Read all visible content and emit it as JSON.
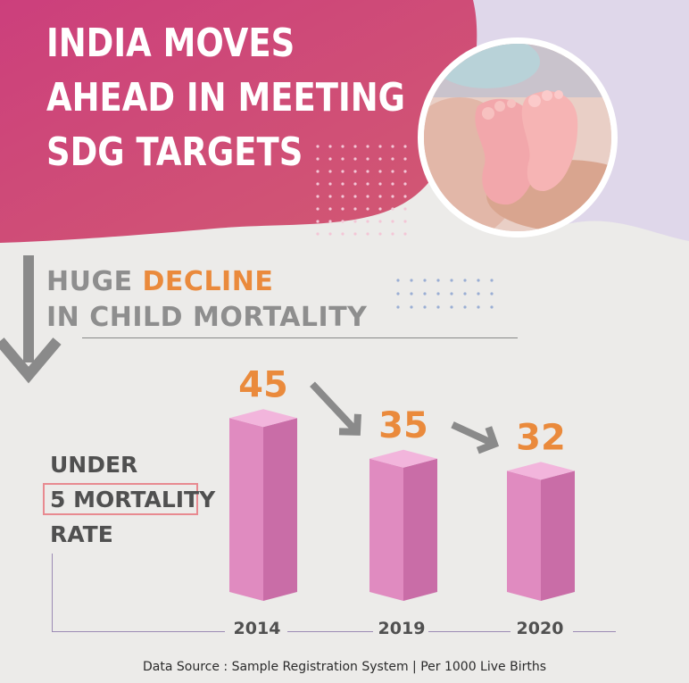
{
  "header": {
    "title_lines": [
      "INDIA MOVES",
      "AHEAD IN MEETING",
      "SDG TARGETS"
    ]
  },
  "subheading": {
    "part1": "HUGE ",
    "highlight": "DECLINE",
    "line2": "IN CHILD MORTALITY"
  },
  "ylabel_lines": [
    "UNDER",
    "5 MORTALITY",
    "RATE"
  ],
  "source_text": "Data Source : Sample Registration System | Per 1000 Live Births",
  "colors": {
    "banner": "#c8447d",
    "bar_front": "#e08bc0",
    "bar_side": "#c96da7",
    "bar_top": "#f2b5dc",
    "value_text": "#ea8a3c",
    "highlight": "#ea8a3c",
    "arrow": "#8a8a8a"
  },
  "chart_data": {
    "type": "bar",
    "categories": [
      "2014",
      "2019",
      "2020"
    ],
    "values": [
      45,
      35,
      32
    ],
    "ylabel": "UNDER 5 MORTALITY RATE",
    "ylim": [
      0,
      50
    ],
    "grid": false,
    "legend": "none"
  }
}
